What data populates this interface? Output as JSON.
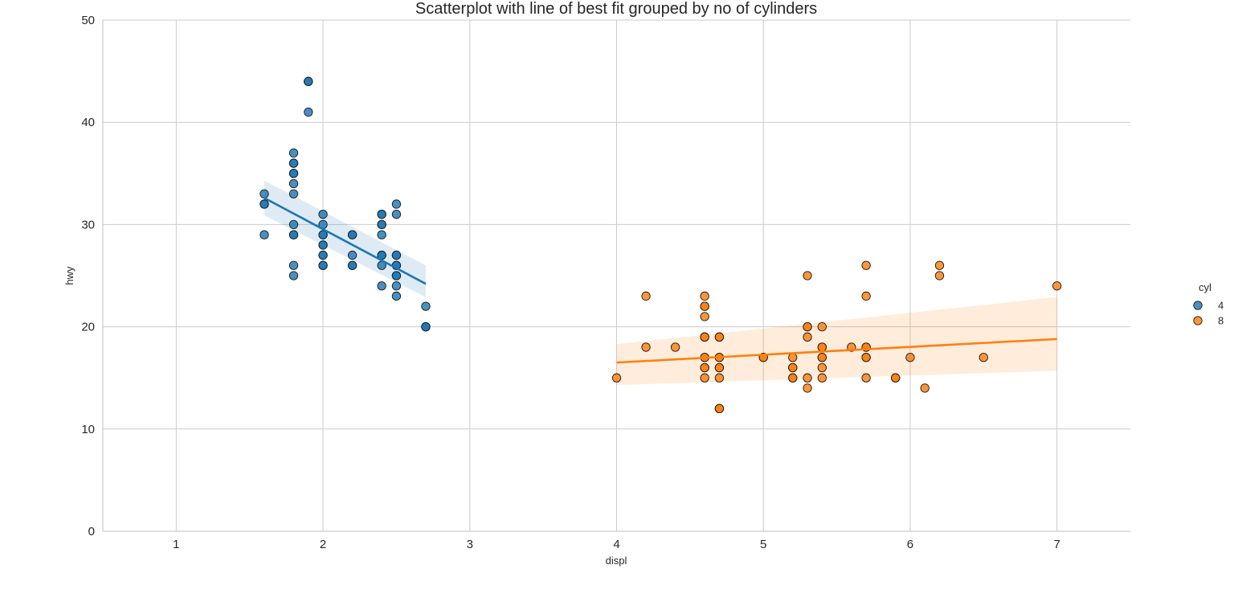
{
  "chart_data": {
    "type": "scatter",
    "title": "Scatterplot with line of best fit grouped by no of cylinders",
    "xlabel": "displ",
    "ylabel": "hwy",
    "xlim": [
      0.5,
      7.5
    ],
    "ylim": [
      0,
      50
    ],
    "xticks": [
      1,
      2,
      3,
      4,
      5,
      6,
      7
    ],
    "yticks": [
      0,
      10,
      20,
      30,
      40,
      50
    ],
    "grid": true,
    "legend": {
      "title": "cyl",
      "placement": "right"
    },
    "series": [
      {
        "name": "4",
        "color": "#1f77b4",
        "fit": {
          "x": [
            1.6,
            2.7
          ],
          "y": [
            32.6,
            24.2
          ],
          "ci_low": [
            30.9,
            22.9
          ],
          "ci_high": [
            34.3,
            26.0
          ]
        },
        "points": [
          [
            1.6,
            33
          ],
          [
            1.6,
            32
          ],
          [
            1.6,
            32
          ],
          [
            1.6,
            29
          ],
          [
            1.8,
            37
          ],
          [
            1.8,
            36
          ],
          [
            1.8,
            36
          ],
          [
            1.8,
            35
          ],
          [
            1.8,
            35
          ],
          [
            1.8,
            34
          ],
          [
            1.8,
            33
          ],
          [
            1.8,
            30
          ],
          [
            1.8,
            29
          ],
          [
            1.8,
            29
          ],
          [
            1.8,
            26
          ],
          [
            1.8,
            25
          ],
          [
            1.9,
            44
          ],
          [
            1.9,
            44
          ],
          [
            1.9,
            41
          ],
          [
            2.0,
            31
          ],
          [
            2.0,
            30
          ],
          [
            2.0,
            29
          ],
          [
            2.0,
            29
          ],
          [
            2.0,
            28
          ],
          [
            2.0,
            28
          ],
          [
            2.0,
            27
          ],
          [
            2.0,
            27
          ],
          [
            2.0,
            26
          ],
          [
            2.0,
            26
          ],
          [
            2.2,
            29
          ],
          [
            2.2,
            29
          ],
          [
            2.2,
            27
          ],
          [
            2.2,
            26
          ],
          [
            2.2,
            26
          ],
          [
            2.4,
            31
          ],
          [
            2.4,
            31
          ],
          [
            2.4,
            30
          ],
          [
            2.4,
            30
          ],
          [
            2.4,
            29
          ],
          [
            2.4,
            27
          ],
          [
            2.4,
            27
          ],
          [
            2.4,
            26
          ],
          [
            2.4,
            24
          ],
          [
            2.5,
            32
          ],
          [
            2.5,
            31
          ],
          [
            2.5,
            27
          ],
          [
            2.5,
            27
          ],
          [
            2.5,
            26
          ],
          [
            2.5,
            26
          ],
          [
            2.5,
            25
          ],
          [
            2.5,
            25
          ],
          [
            2.5,
            24
          ],
          [
            2.5,
            23
          ],
          [
            2.7,
            22
          ],
          [
            2.7,
            20
          ],
          [
            2.7,
            20
          ],
          [
            2.7,
            20
          ]
        ]
      },
      {
        "name": "8",
        "color": "#ff7f0e",
        "fit": {
          "x": [
            4.0,
            7.0
          ],
          "y": [
            16.5,
            18.8
          ],
          "ci_low": [
            14.3,
            15.7
          ],
          "ci_high": [
            18.3,
            22.9
          ]
        },
        "points": [
          [
            4.0,
            15
          ],
          [
            4.2,
            23
          ],
          [
            4.2,
            18
          ],
          [
            4.4,
            18
          ],
          [
            4.6,
            23
          ],
          [
            4.6,
            22
          ],
          [
            4.6,
            22
          ],
          [
            4.6,
            21
          ],
          [
            4.6,
            19
          ],
          [
            4.6,
            19
          ],
          [
            4.6,
            17
          ],
          [
            4.6,
            17
          ],
          [
            4.6,
            16
          ],
          [
            4.6,
            16
          ],
          [
            4.6,
            15
          ],
          [
            4.7,
            19
          ],
          [
            4.7,
            19
          ],
          [
            4.7,
            17
          ],
          [
            4.7,
            17
          ],
          [
            4.7,
            16
          ],
          [
            4.7,
            16
          ],
          [
            4.7,
            15
          ],
          [
            4.7,
            12
          ],
          [
            4.7,
            12
          ],
          [
            4.7,
            12
          ],
          [
            5.0,
            17
          ],
          [
            5.0,
            17
          ],
          [
            5.2,
            17
          ],
          [
            5.2,
            16
          ],
          [
            5.2,
            16
          ],
          [
            5.2,
            15
          ],
          [
            5.2,
            15
          ],
          [
            5.3,
            25
          ],
          [
            5.3,
            20
          ],
          [
            5.3,
            20
          ],
          [
            5.3,
            19
          ],
          [
            5.3,
            15
          ],
          [
            5.3,
            14
          ],
          [
            5.4,
            20
          ],
          [
            5.4,
            18
          ],
          [
            5.4,
            18
          ],
          [
            5.4,
            17
          ],
          [
            5.4,
            17
          ],
          [
            5.4,
            16
          ],
          [
            5.4,
            15
          ],
          [
            5.6,
            18
          ],
          [
            5.7,
            26
          ],
          [
            5.7,
            23
          ],
          [
            5.7,
            18
          ],
          [
            5.7,
            18
          ],
          [
            5.7,
            17
          ],
          [
            5.7,
            17
          ],
          [
            5.7,
            15
          ],
          [
            5.9,
            15
          ],
          [
            5.9,
            15
          ],
          [
            6.0,
            17
          ],
          [
            6.1,
            14
          ],
          [
            6.2,
            26
          ],
          [
            6.2,
            25
          ],
          [
            6.5,
            17
          ],
          [
            7.0,
            24
          ]
        ]
      }
    ]
  }
}
